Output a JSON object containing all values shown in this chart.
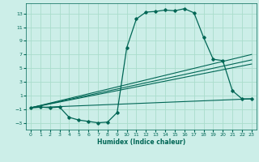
{
  "xlabel": "Humidex (Indice chaleur)",
  "bg_color": "#cceee8",
  "grid_color": "#aaddcc",
  "line_color": "#006655",
  "xlim": [
    -0.5,
    23.5
  ],
  "ylim": [
    -4,
    14.5
  ],
  "xticks": [
    0,
    1,
    2,
    3,
    4,
    5,
    6,
    7,
    8,
    9,
    10,
    11,
    12,
    13,
    14,
    15,
    16,
    17,
    18,
    19,
    20,
    21,
    22,
    23
  ],
  "yticks": [
    -3,
    -1,
    1,
    3,
    5,
    7,
    9,
    11,
    13
  ],
  "main_curve_x": [
    0,
    1,
    2,
    3,
    4,
    5,
    6,
    7,
    8,
    9,
    10,
    11,
    12,
    13,
    14,
    15,
    16,
    17,
    18,
    19,
    20,
    21,
    22,
    23
  ],
  "main_curve_y": [
    -0.8,
    -0.7,
    -0.8,
    -0.7,
    -2.2,
    -2.6,
    -2.8,
    -3.0,
    -2.9,
    -1.5,
    8.0,
    12.2,
    13.2,
    13.3,
    13.5,
    13.4,
    13.7,
    13.1,
    9.5,
    6.3,
    6.1,
    1.7,
    0.5,
    0.5
  ],
  "line1_x": [
    0,
    23
  ],
  "line1_y": [
    -0.8,
    7.0
  ],
  "line2_x": [
    0,
    23
  ],
  "line2_y": [
    -0.8,
    6.2
  ],
  "line3_x": [
    0,
    23
  ],
  "line3_y": [
    -0.8,
    5.6
  ],
  "line4_x": [
    0,
    23
  ],
  "line4_y": [
    -0.8,
    0.5
  ],
  "figsize": [
    3.2,
    2.0
  ],
  "dpi": 100
}
